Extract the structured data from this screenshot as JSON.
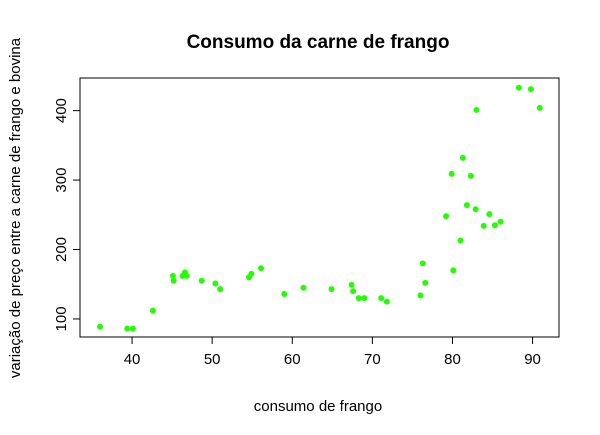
{
  "chart_data": {
    "type": "scatter",
    "title": "Consumo da carne de frango",
    "xlabel": "consumo de frango",
    "ylabel": "variação de preço entre a carne de frango e bovina",
    "xlim": [
      33.5,
      93.3
    ],
    "ylim": [
      74,
      447
    ],
    "xticks": [
      40,
      50,
      60,
      70,
      80,
      90
    ],
    "yticks": [
      100,
      200,
      300,
      400
    ],
    "grid": false,
    "legend": "none",
    "point_color": "#22ff00",
    "points": [
      [
        36.0,
        89
      ],
      [
        39.4,
        86
      ],
      [
        40.1,
        86
      ],
      [
        42.6,
        112
      ],
      [
        45.1,
        162
      ],
      [
        45.2,
        155
      ],
      [
        46.3,
        162
      ],
      [
        46.6,
        167
      ],
      [
        46.8,
        162
      ],
      [
        48.7,
        155
      ],
      [
        50.4,
        151
      ],
      [
        51.0,
        143
      ],
      [
        54.6,
        160
      ],
      [
        54.9,
        165
      ],
      [
        56.1,
        173
      ],
      [
        59.0,
        136
      ],
      [
        61.4,
        145
      ],
      [
        64.9,
        143
      ],
      [
        67.4,
        149
      ],
      [
        67.6,
        140
      ],
      [
        68.3,
        130
      ],
      [
        69.0,
        130
      ],
      [
        71.1,
        130
      ],
      [
        71.8,
        125
      ],
      [
        76.0,
        134
      ],
      [
        76.3,
        180
      ],
      [
        76.6,
        152
      ],
      [
        79.2,
        248
      ],
      [
        79.9,
        309
      ],
      [
        80.1,
        170
      ],
      [
        81.0,
        213
      ],
      [
        81.3,
        332
      ],
      [
        81.8,
        264
      ],
      [
        82.3,
        306
      ],
      [
        82.9,
        258
      ],
      [
        83.0,
        401
      ],
      [
        83.9,
        234
      ],
      [
        84.6,
        251
      ],
      [
        85.3,
        235
      ],
      [
        86.0,
        240
      ],
      [
        88.3,
        433
      ],
      [
        89.8,
        431
      ],
      [
        90.9,
        404
      ]
    ]
  }
}
